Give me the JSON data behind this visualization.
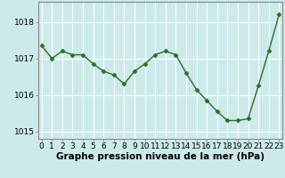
{
  "x": [
    0,
    1,
    2,
    3,
    4,
    5,
    6,
    7,
    8,
    9,
    10,
    11,
    12,
    13,
    14,
    15,
    16,
    17,
    18,
    19,
    20,
    21,
    22,
    23
  ],
  "y": [
    1017.35,
    1017.0,
    1017.2,
    1017.1,
    1017.1,
    1016.85,
    1016.65,
    1016.55,
    1016.3,
    1016.65,
    1016.85,
    1017.1,
    1017.2,
    1017.1,
    1016.6,
    1016.15,
    1015.85,
    1015.55,
    1015.3,
    1015.3,
    1015.35,
    1016.25,
    1017.2,
    1018.2
  ],
  "line_color": "#2a6e2a",
  "marker": "D",
  "marker_size": 2.5,
  "bg_color": "#cceaea",
  "grid_color": "#ffffff",
  "xlabel": "Graphe pression niveau de la mer (hPa)",
  "xlabel_fontsize": 7.5,
  "yticks": [
    1015,
    1016,
    1017,
    1018
  ],
  "xticks": [
    0,
    1,
    2,
    3,
    4,
    5,
    6,
    7,
    8,
    9,
    10,
    11,
    12,
    13,
    14,
    15,
    16,
    17,
    18,
    19,
    20,
    21,
    22,
    23
  ],
  "ylim": [
    1014.8,
    1018.55
  ],
  "xlim": [
    -0.3,
    23.3
  ],
  "tick_fontsize": 6.5,
  "border_color": "#2a6e2a",
  "spine_color": "#888888"
}
